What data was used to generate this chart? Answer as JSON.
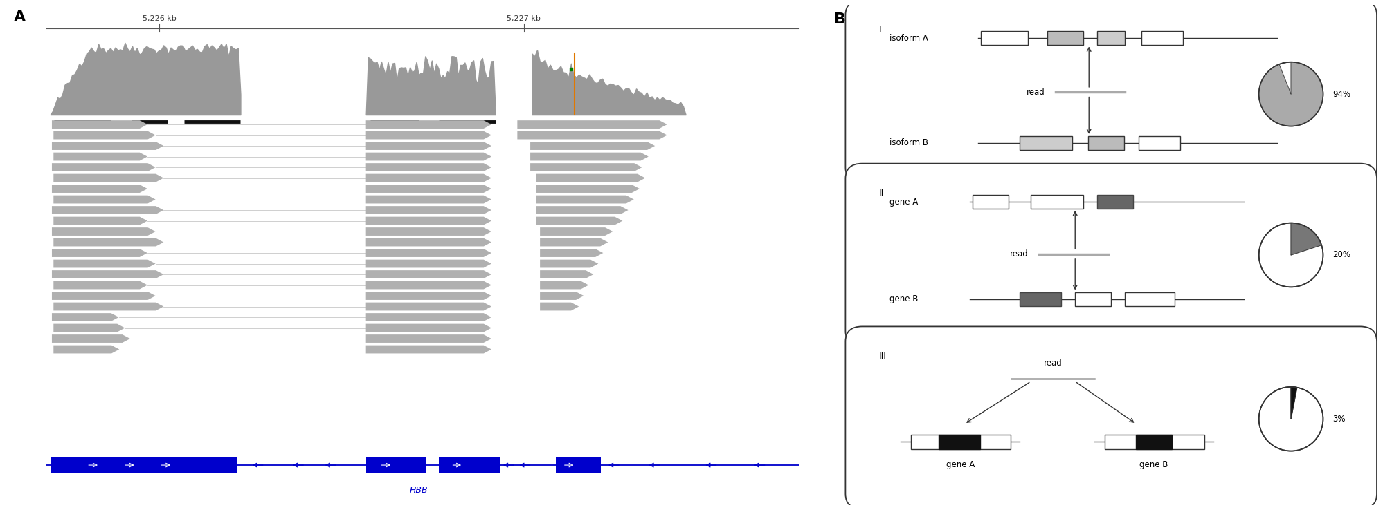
{
  "fig_width": 19.99,
  "fig_height": 7.38,
  "panel_A_label": "A",
  "panel_B_label": "B",
  "coord_label1": "5,226 kb",
  "coord_label2": "5,227 kb",
  "gene_label": "HBB",
  "read_color": "#b0b0b0",
  "coverage_color": "#999999",
  "black_bar_color": "#111111",
  "blue_color": "#0000cc",
  "orange_line_color": "#e07800",
  "green_color": "#00aa00",
  "panel_I_pct": 94,
  "panel_II_pct": 20,
  "panel_III_pct": 3
}
